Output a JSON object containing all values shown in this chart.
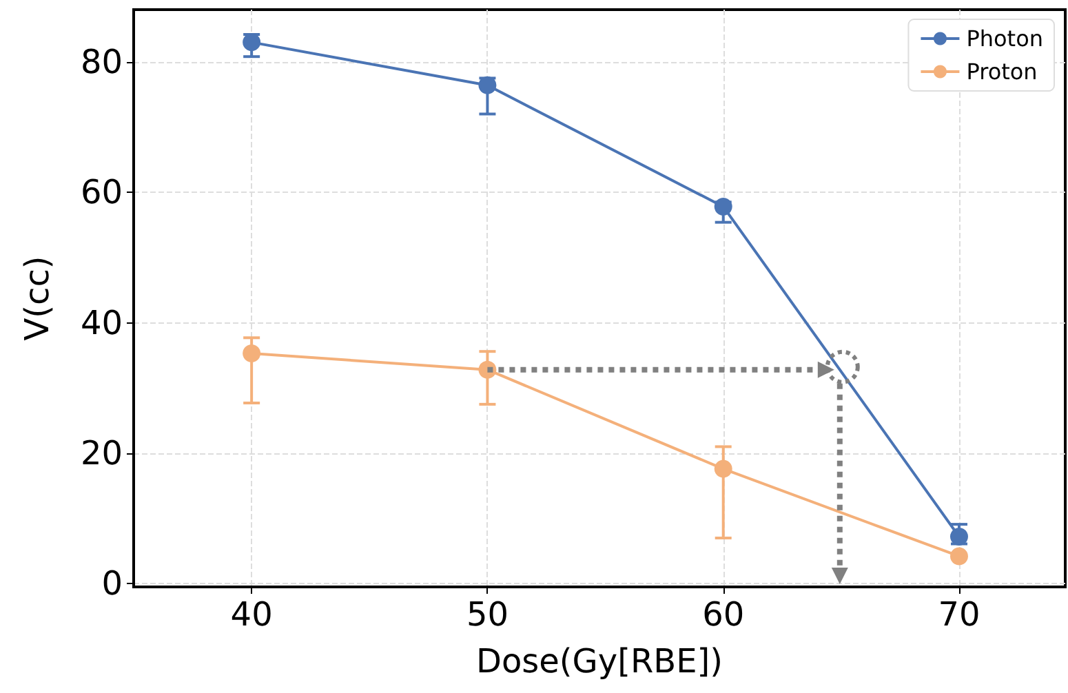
{
  "chart_data": {
    "type": "line",
    "xlabel": "Dose(Gy[RBE])",
    "ylabel": "V(cc)",
    "x": [
      40,
      50,
      60,
      70
    ],
    "series": [
      {
        "name": "Photon",
        "color": "#4a74b4",
        "values": [
          83.0,
          76.4,
          57.8,
          7.2
        ],
        "errors": [
          [
            80.8,
            84.2
          ],
          [
            72.0,
            77.5
          ],
          [
            55.4,
            58.5
          ],
          [
            6.1,
            9.1
          ]
        ]
      },
      {
        "name": "Proton",
        "color": "#f4b07a",
        "values": [
          35.3,
          32.8,
          17.6,
          4.2
        ],
        "errors": [
          [
            27.7,
            37.7
          ],
          [
            27.5,
            35.6
          ],
          [
            7.0,
            21.0
          ],
          null
        ]
      }
    ],
    "xlim": [
      35,
      74.5
    ],
    "xticks": [
      40,
      50,
      60,
      70
    ],
    "ylim": [
      -0.5,
      88
    ],
    "yticks": [
      0,
      20,
      40,
      60,
      80
    ],
    "grid": true,
    "legend": "top right",
    "marker": "circle",
    "line_style": "solid"
  }
}
